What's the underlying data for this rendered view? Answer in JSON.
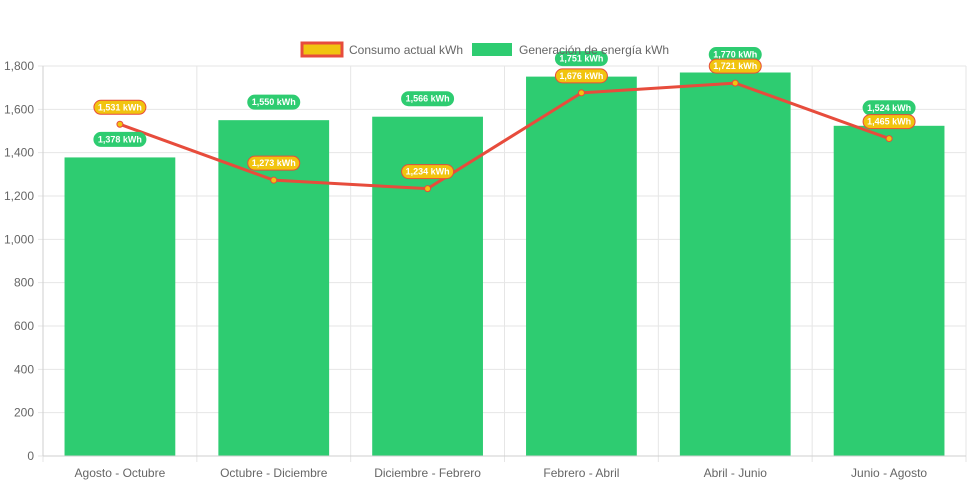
{
  "chart_data": {
    "type": "bar",
    "categories": [
      "Agosto - Octubre",
      "Octubre - Diciembre",
      "Diciembre - Febrero",
      "Febrero - Abril",
      "Abril - Junio",
      "Junio - Agosto"
    ],
    "series": [
      {
        "name": "Consumo actual kWh",
        "type": "line",
        "values": [
          1531,
          1273,
          1234,
          1676,
          1721,
          1465
        ],
        "labels": [
          "1,531 kWh",
          "1,273 kWh",
          "1,234 kWh",
          "1,676 kWh",
          "1,721 kWh",
          "1,465 kWh"
        ],
        "color": "#e74c3c",
        "fill": "#f1c40f"
      },
      {
        "name": "Generación de energía kWh",
        "type": "bar",
        "values": [
          1378,
          1550,
          1566,
          1751,
          1770,
          1524
        ],
        "labels": [
          "1,378 kWh",
          "1,550 kWh",
          "1,566 kWh",
          "1,751 kWh",
          "1,770 kWh",
          "1,524 kWh"
        ],
        "color": "#2ecc71"
      }
    ],
    "ylim": [
      0,
      1800
    ],
    "yticks": [
      0,
      200,
      400,
      600,
      800,
      1000,
      1200,
      1400,
      1600,
      1800
    ],
    "ytick_labels": [
      "0",
      "200",
      "400",
      "600",
      "800",
      "1,000",
      "1,200",
      "1,400",
      "1,600",
      "1,800"
    ],
    "xlabel": "",
    "ylabel": "",
    "title": "",
    "grid": true,
    "legend_position": "top-center"
  }
}
